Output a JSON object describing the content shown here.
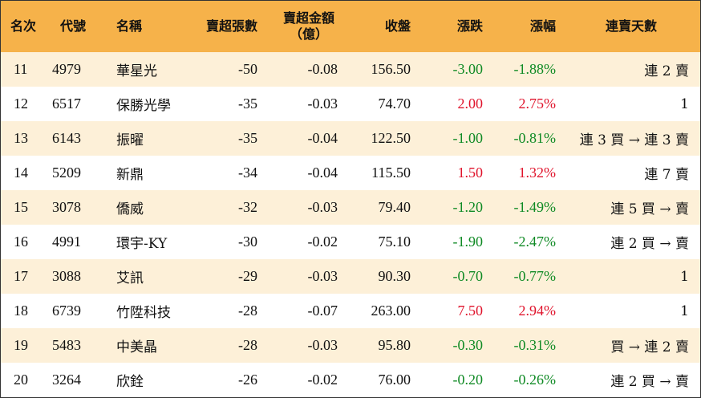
{
  "headers": {
    "rank": "名次",
    "code": "代號",
    "name": "名稱",
    "sell_shares": "賣超張數",
    "sell_amount_line1": "賣超金額",
    "sell_amount_line2": "（億）",
    "close": "收盤",
    "change": "漲跌",
    "change_pct": "漲幅",
    "streak": "連賣天數"
  },
  "colors": {
    "header_bg": "#f6b24a",
    "row_stripe": "#fdf0d8",
    "up": "#e0142c",
    "down": "#0f8a24"
  },
  "rows": [
    {
      "rank": "11",
      "code": "4979",
      "name": "華星光",
      "shares": "-50",
      "amount": "-0.08",
      "close": "156.50",
      "change": "-3.00",
      "pct": "-1.88%",
      "dir": "down",
      "streak": "連 2 賣"
    },
    {
      "rank": "12",
      "code": "6517",
      "name": "保勝光學",
      "shares": "-35",
      "amount": "-0.03",
      "close": "74.70",
      "change": "2.00",
      "pct": "2.75%",
      "dir": "up",
      "streak": "1"
    },
    {
      "rank": "13",
      "code": "6143",
      "name": "振曜",
      "shares": "-35",
      "amount": "-0.04",
      "close": "122.50",
      "change": "-1.00",
      "pct": "-0.81%",
      "dir": "down",
      "streak": "連 3 買 → 連 3 賣"
    },
    {
      "rank": "14",
      "code": "5209",
      "name": "新鼎",
      "shares": "-34",
      "amount": "-0.04",
      "close": "115.50",
      "change": "1.50",
      "pct": "1.32%",
      "dir": "up",
      "streak": "連 7 賣"
    },
    {
      "rank": "15",
      "code": "3078",
      "name": "僑威",
      "shares": "-32",
      "amount": "-0.03",
      "close": "79.40",
      "change": "-1.20",
      "pct": "-1.49%",
      "dir": "down",
      "streak": "連 5 買 → 賣"
    },
    {
      "rank": "16",
      "code": "4991",
      "name": "環宇-KY",
      "shares": "-30",
      "amount": "-0.02",
      "close": "75.10",
      "change": "-1.90",
      "pct": "-2.47%",
      "dir": "down",
      "streak": "連 2 買 → 賣"
    },
    {
      "rank": "17",
      "code": "3088",
      "name": "艾訊",
      "shares": "-29",
      "amount": "-0.03",
      "close": "90.30",
      "change": "-0.70",
      "pct": "-0.77%",
      "dir": "down",
      "streak": "1"
    },
    {
      "rank": "18",
      "code": "6739",
      "name": "竹陞科技",
      "shares": "-28",
      "amount": "-0.07",
      "close": "263.00",
      "change": "7.50",
      "pct": "2.94%",
      "dir": "up",
      "streak": "1"
    },
    {
      "rank": "19",
      "code": "5483",
      "name": "中美晶",
      "shares": "-28",
      "amount": "-0.03",
      "close": "95.80",
      "change": "-0.30",
      "pct": "-0.31%",
      "dir": "down",
      "streak": "買 → 連 2 賣"
    },
    {
      "rank": "20",
      "code": "3264",
      "name": "欣銓",
      "shares": "-26",
      "amount": "-0.02",
      "close": "76.00",
      "change": "-0.20",
      "pct": "-0.26%",
      "dir": "down",
      "streak": "連 2 買 → 賣"
    }
  ]
}
